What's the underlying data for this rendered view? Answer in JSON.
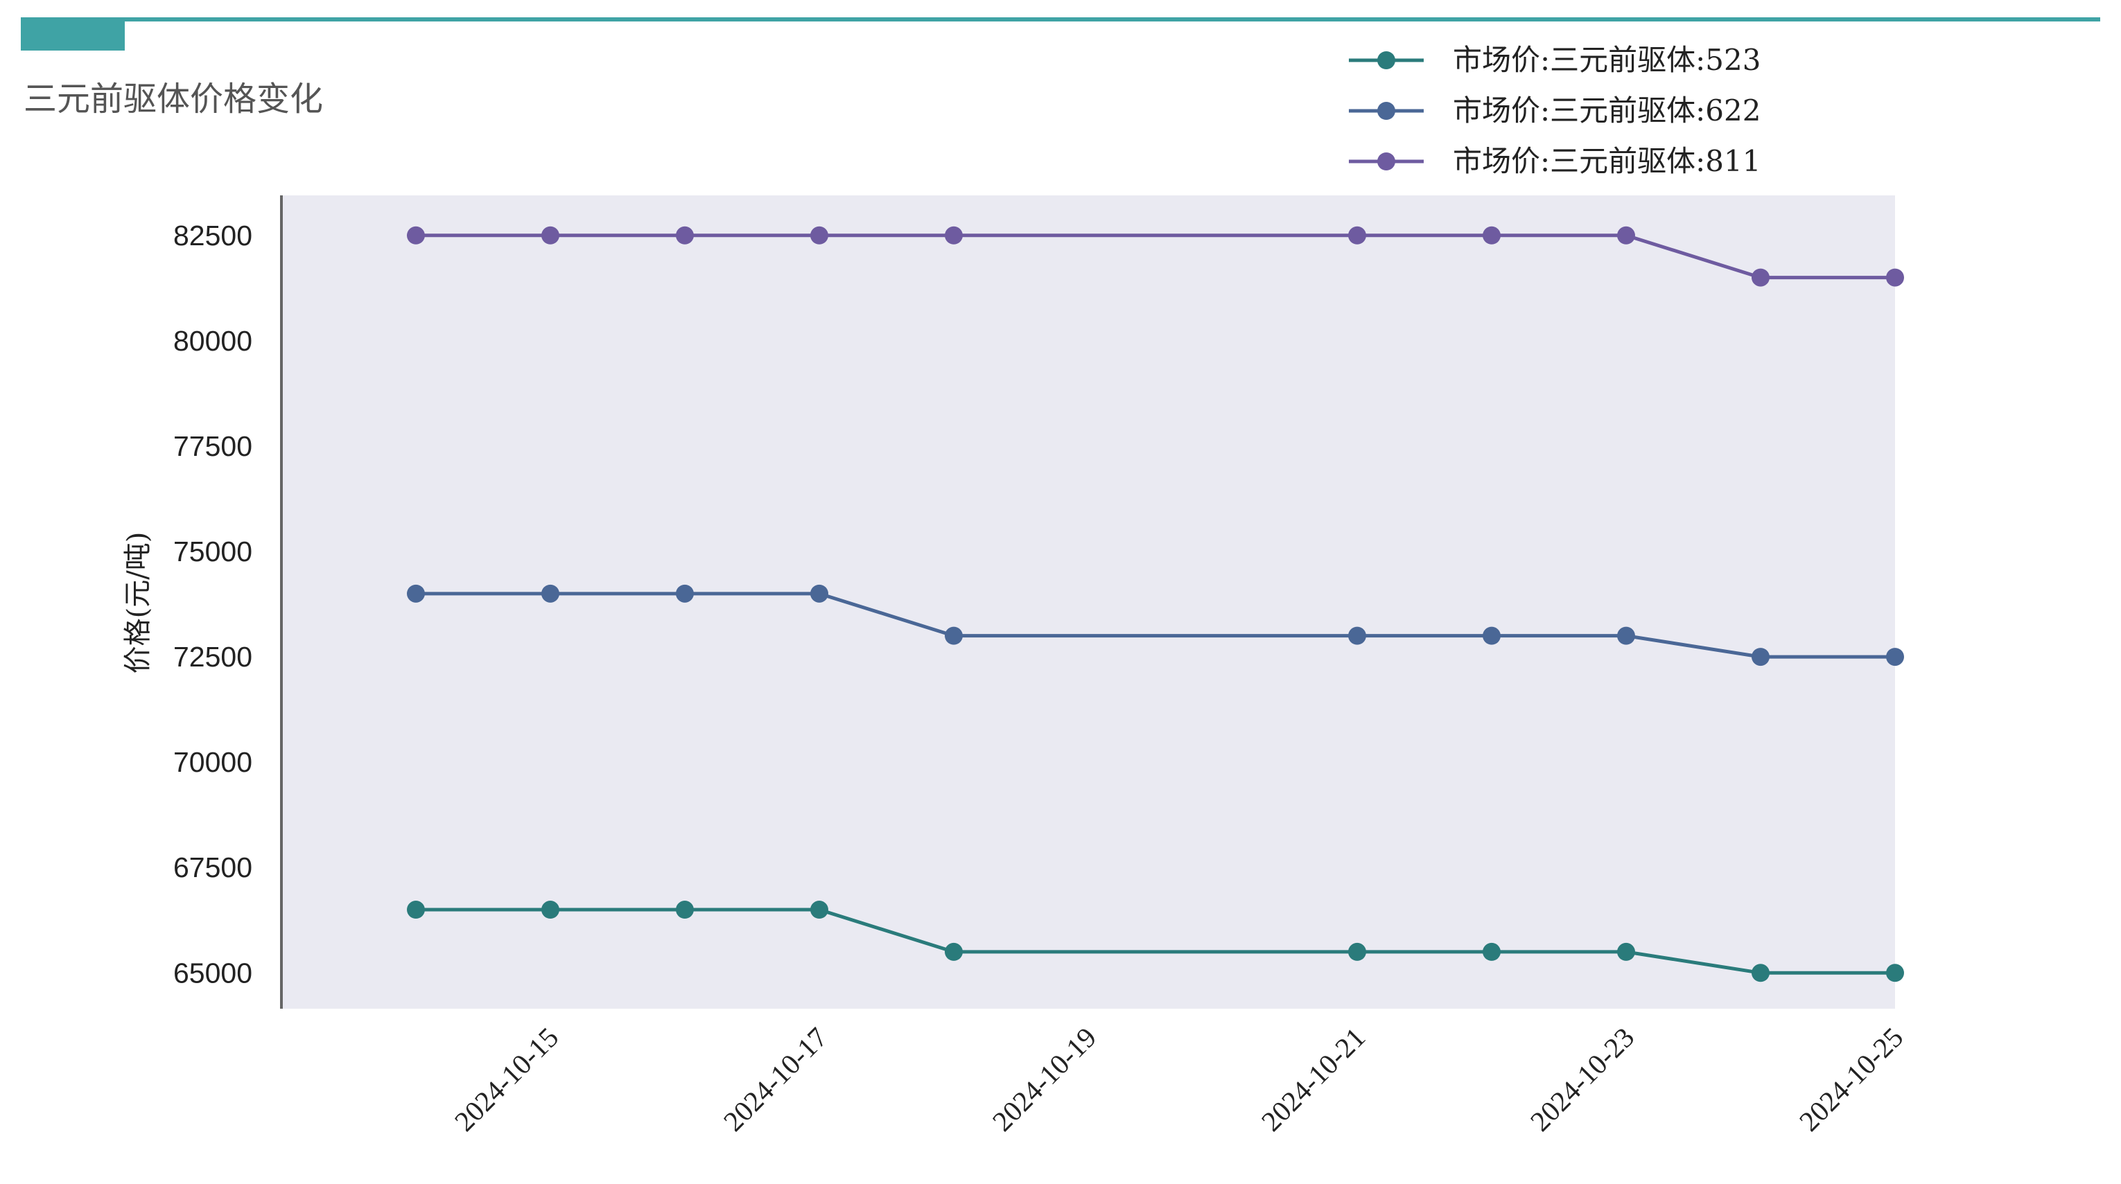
{
  "page": {
    "title": "三元前驱体价格变化"
  },
  "colors": {
    "accent": "#3fa3a5",
    "plot_bg": "#eaeaf2",
    "axis": "#666666"
  },
  "chart_data": {
    "type": "line",
    "title": "三元前驱体价格变化",
    "xlabel": "",
    "ylabel": "价格(元/吨)",
    "x": [
      "2024-10-14",
      "2024-10-15",
      "2024-10-16",
      "2024-10-17",
      "2024-10-18",
      "2024-10-21",
      "2024-10-22",
      "2024-10-23",
      "2024-10-24",
      "2024-10-25"
    ],
    "x_ticks": [
      "2024-10-15",
      "2024-10-17",
      "2024-10-19",
      "2024-10-21",
      "2024-10-23",
      "2024-10-25"
    ],
    "xlim": [
      "2024-10-13",
      "2024-10-25"
    ],
    "y_ticks": [
      65000,
      67500,
      70000,
      72500,
      75000,
      77500,
      80000,
      82500
    ],
    "ylim": [
      64150,
      83450
    ],
    "grid": false,
    "legend_position": "top-right",
    "series": [
      {
        "name": "市场价:三元前驱体:523",
        "color": "#2a7b7b",
        "values": [
          66500,
          66500,
          66500,
          66500,
          65500,
          65500,
          65500,
          65500,
          65000,
          65000
        ]
      },
      {
        "name": "市场价:三元前驱体:622",
        "color": "#4a6796",
        "values": [
          74000,
          74000,
          74000,
          74000,
          73000,
          73000,
          73000,
          73000,
          72500,
          72500
        ]
      },
      {
        "name": "市场价:三元前驱体:811",
        "color": "#6e5ba0",
        "values": [
          82500,
          82500,
          82500,
          82500,
          82500,
          82500,
          82500,
          82500,
          81500,
          81500
        ]
      }
    ]
  }
}
